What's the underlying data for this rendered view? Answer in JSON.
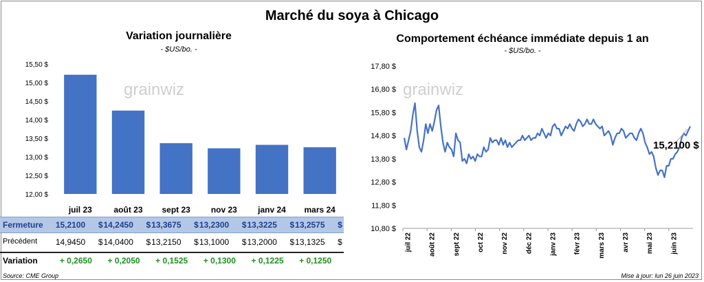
{
  "title": "Marché du soya à Chicago",
  "left_chart": {
    "title": "Variation  journalière",
    "unit": "- $US/bo. -",
    "watermark": "grainwiz"
  },
  "right_chart": {
    "title": "Comportement  échéance immédiate depuis 1 an",
    "unit": "- $US/bo. -",
    "watermark": "grainwiz",
    "last_label": "15,2100 $"
  },
  "table": {
    "close_label": "Fermeture",
    "prev_label": "Précédent",
    "var_label": "Variation",
    "close": [
      "15,2100",
      "14,2450",
      "13,3675",
      "13,2300",
      "13,3225",
      "13,2575"
    ],
    "prev": [
      "14,9450",
      "14,0400",
      "13,2150",
      "13,1000",
      "13,2000",
      "13,1325"
    ],
    "var": [
      "+ 0,2650",
      "+ 0,2050",
      "+ 0,1525",
      "+ 0,1300",
      "+ 0,1225",
      "+ 0,1250"
    ],
    "currency": "$"
  },
  "footer": {
    "source": "Source: CME Group",
    "updated": "Mise à jour: lun 26 juin 2023"
  },
  "colors": {
    "bar": "#4472c4",
    "line": "#4472c4",
    "table_band": "#b4c7e7",
    "positive": "#1f8f1f"
  },
  "chart_data": [
    {
      "type": "bar",
      "categories": [
        "juil 23",
        "août 23",
        "sept 23",
        "nov 23",
        "janv 24",
        "mars 24"
      ],
      "values": [
        15.21,
        14.245,
        13.3675,
        13.23,
        13.3225,
        13.2575
      ],
      "ylim": [
        12.0,
        15.5
      ],
      "yticks": [
        12.0,
        12.5,
        13.0,
        13.5,
        14.0,
        14.5,
        15.0,
        15.5
      ],
      "ytick_labels": [
        "12,00 $",
        "12,50 $",
        "13,00 $",
        "13,50 $",
        "14,00 $",
        "14,50 $",
        "15,00 $",
        "15,50 $"
      ],
      "grid": false
    },
    {
      "type": "line",
      "x_labels": [
        "juil 22",
        "août 22",
        "sept 22",
        "oct 22",
        "nov 22",
        "déc 22",
        "janv 23",
        "févr 23",
        "mars 23",
        "avr 23",
        "mai 23",
        "juin 23"
      ],
      "ylim": [
        10.8,
        17.8
      ],
      "yticks": [
        10.8,
        11.8,
        12.8,
        13.8,
        14.8,
        15.8,
        16.8,
        17.8
      ],
      "ytick_labels": [
        "10,80 $",
        "11,80 $",
        "12,80 $",
        "13,80 $",
        "14,80 $",
        "15,80 $",
        "16,80 $",
        "17,80 $"
      ],
      "values": [
        14.7,
        14.2,
        14.6,
        15.0,
        15.7,
        16.2,
        15.0,
        14.3,
        14.1,
        14.6,
        15.3,
        14.9,
        15.3,
        15.0,
        15.4,
        15.9,
        16.1,
        15.2,
        14.5,
        14.1,
        14.5,
        14.3,
        14.2,
        13.9,
        14.9,
        14.6,
        14.5,
        13.7,
        13.8,
        13.6,
        14.0,
        13.8,
        13.9,
        13.7,
        14.0,
        13.9,
        13.9,
        14.3,
        14.1,
        14.2,
        14.7,
        14.5,
        14.6,
        14.6,
        14.4,
        14.7,
        14.4,
        14.6,
        14.3,
        14.5,
        14.3,
        14.4,
        14.5,
        14.6,
        14.6,
        14.8,
        14.6,
        14.7,
        14.8,
        14.6,
        14.7,
        14.7,
        14.9,
        14.8,
        15.1,
        14.9,
        14.7,
        14.9,
        14.8,
        15.2,
        15.3,
        15.1,
        15.1,
        14.8,
        15.0,
        15.2,
        15.1,
        15.3,
        15.1,
        15.0,
        15.3,
        15.5,
        15.4,
        15.2,
        15.3,
        15.5,
        15.3,
        15.3,
        15.5,
        15.3,
        15.2,
        15.1,
        15.2,
        14.8,
        14.9,
        15.0,
        14.8,
        14.4,
        14.7,
        14.9,
        14.9,
        15.1,
        15.0,
        14.7,
        14.8,
        14.9,
        14.9,
        14.7,
        14.6,
        14.9,
        15.1,
        14.9,
        14.5,
        14.3,
        14.0,
        14.1,
        13.9,
        13.4,
        13.1,
        13.3,
        13.3,
        13.0,
        13.5,
        13.5,
        13.8,
        13.8,
        14.0,
        14.1,
        14.3,
        14.7,
        14.9,
        14.8,
        15.0,
        15.2
      ]
    }
  ]
}
